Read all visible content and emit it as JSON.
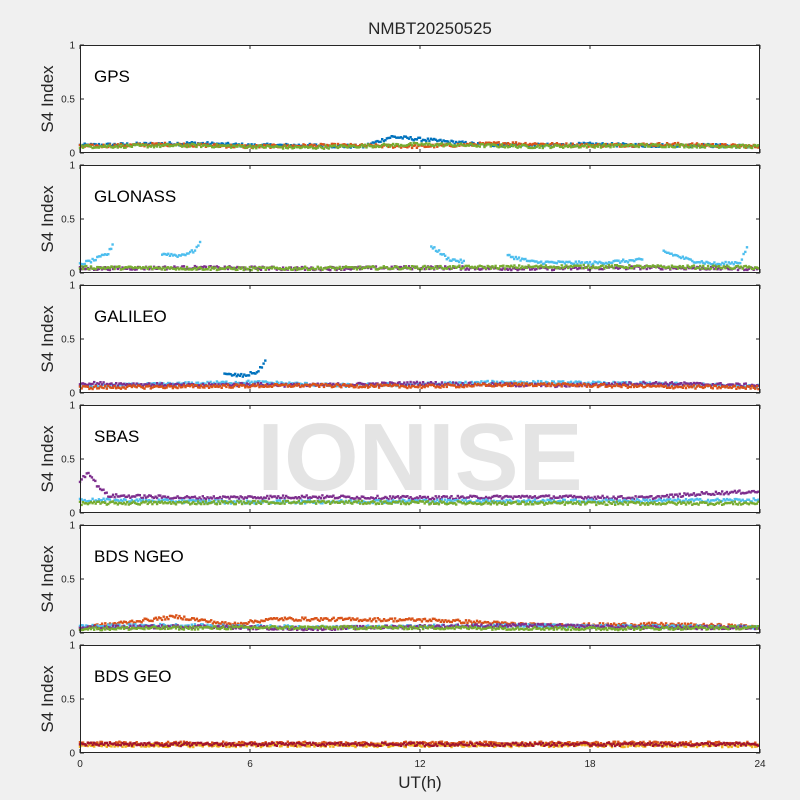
{
  "chart_data": {
    "type": "scatter",
    "title": "NMBT20250525",
    "xlabel": "UT(h)",
    "ylabel": "S4 Index",
    "xlim": [
      0,
      24
    ],
    "ylim": [
      0,
      1
    ],
    "xticks": [
      "0",
      "6",
      "12",
      "18",
      "24"
    ],
    "yticks": [
      "0",
      "0.5",
      "1"
    ],
    "watermark": "IONISE",
    "palette": [
      "#0072bd",
      "#d95319",
      "#edb120",
      "#7e2f8e",
      "#77ac30",
      "#4dbeee",
      "#a2142f"
    ],
    "panels": [
      {
        "name": "GPS",
        "series": [
          {
            "color": "#0072bd",
            "x": [
              0,
              2,
              4,
              6,
              8,
              10,
              11,
              14,
              16,
              18,
              20,
              22,
              24
            ],
            "y": [
              0.07,
              0.08,
              0.09,
              0.07,
              0.07,
              0.06,
              0.15,
              0.08,
              0.07,
              0.08,
              0.07,
              0.07,
              0.06
            ]
          },
          {
            "color": "#d95319",
            "x": [
              0,
              3,
              6,
              9,
              12,
              15,
              18,
              21,
              24
            ],
            "y": [
              0.06,
              0.08,
              0.06,
              0.07,
              0.06,
              0.09,
              0.07,
              0.08,
              0.06
            ]
          },
          {
            "color": "#77ac30",
            "x": [
              0,
              4,
              8,
              12,
              16,
              20,
              24
            ],
            "y": [
              0.06,
              0.07,
              0.05,
              0.08,
              0.06,
              0.07,
              0.06
            ]
          }
        ]
      },
      {
        "name": "GLONASS",
        "series": [
          {
            "color": "#4dbeee",
            "x": [
              0,
              0.5,
              1.0,
              1.2
            ],
            "y": [
              0.08,
              0.12,
              0.18,
              0.29
            ]
          },
          {
            "color": "#4dbeee",
            "x": [
              2.9,
              3.5,
              4.0,
              4.3
            ],
            "y": [
              0.18,
              0.16,
              0.2,
              0.29
            ]
          },
          {
            "color": "#4dbeee",
            "x": [
              12.4,
              13.0,
              13.6
            ],
            "y": [
              0.25,
              0.13,
              0.1
            ]
          },
          {
            "color": "#4dbeee",
            "x": [
              15.1,
              16.0,
              18.0,
              19.9
            ],
            "y": [
              0.16,
              0.1,
              0.09,
              0.12
            ]
          },
          {
            "color": "#4dbeee",
            "x": [
              20.6,
              21.5,
              22.5,
              23.3,
              23.6
            ],
            "y": [
              0.2,
              0.12,
              0.08,
              0.1,
              0.27
            ]
          },
          {
            "color": "#7e2f8e",
            "x": [
              0,
              4,
              8,
              12,
              16,
              20,
              24
            ],
            "y": [
              0.04,
              0.05,
              0.04,
              0.05,
              0.04,
              0.05,
              0.04
            ]
          },
          {
            "color": "#77ac30",
            "x": [
              0,
              6,
              12,
              18,
              24
            ],
            "y": [
              0.05,
              0.04,
              0.05,
              0.06,
              0.05
            ]
          }
        ]
      },
      {
        "name": "GALILEO",
        "series": [
          {
            "color": "#0072bd",
            "x": [
              5.1,
              5.8,
              6.3,
              6.6
            ],
            "y": [
              0.17,
              0.16,
              0.2,
              0.32
            ]
          },
          {
            "color": "#4dbeee",
            "x": [
              0,
              3,
              6,
              9,
              12,
              15,
              18,
              21,
              24
            ],
            "y": [
              0.06,
              0.08,
              0.1,
              0.07,
              0.08,
              0.1,
              0.09,
              0.08,
              0.06
            ]
          },
          {
            "color": "#7e2f8e",
            "x": [
              0,
              2,
              4,
              6,
              8,
              12,
              14,
              17,
              20,
              24
            ],
            "y": [
              0.09,
              0.08,
              0.07,
              0.08,
              0.07,
              0.09,
              0.08,
              0.07,
              0.09,
              0.07
            ]
          },
          {
            "color": "#d95319",
            "x": [
              0,
              4,
              8,
              12,
              16,
              20,
              24
            ],
            "y": [
              0.05,
              0.06,
              0.07,
              0.06,
              0.08,
              0.06,
              0.05
            ]
          }
        ]
      },
      {
        "name": "SBAS",
        "series": [
          {
            "color": "#7e2f8e",
            "x": [
              0,
              0.3,
              0.6,
              1.0,
              4,
              8,
              12,
              16,
              20,
              22,
              24
            ],
            "y": [
              0.3,
              0.38,
              0.26,
              0.16,
              0.14,
              0.15,
              0.14,
              0.15,
              0.14,
              0.18,
              0.2
            ]
          },
          {
            "color": "#4dbeee",
            "x": [
              0,
              6,
              12,
              18,
              24
            ],
            "y": [
              0.12,
              0.1,
              0.11,
              0.11,
              0.12
            ]
          },
          {
            "color": "#77ac30",
            "x": [
              0,
              8,
              16,
              24
            ],
            "y": [
              0.09,
              0.1,
              0.09,
              0.09
            ]
          }
        ]
      },
      {
        "name": "BDS NGEO",
        "series": [
          {
            "color": "#d95319",
            "x": [
              0,
              3.4,
              5.3,
              6.9,
              12.4,
              16.4,
              20.3,
              24
            ],
            "y": [
              0.05,
              0.15,
              0.08,
              0.13,
              0.12,
              0.07,
              0.08,
              0.06
            ]
          },
          {
            "color": "#4dbeee",
            "x": [
              0,
              3,
              6,
              9,
              12,
              15,
              18,
              21,
              24
            ],
            "y": [
              0.06,
              0.07,
              0.06,
              0.05,
              0.06,
              0.07,
              0.06,
              0.06,
              0.05
            ]
          },
          {
            "color": "#7e2f8e",
            "x": [
              0,
              4,
              8,
              12,
              16,
              20,
              24
            ],
            "y": [
              0.05,
              0.06,
              0.04,
              0.06,
              0.07,
              0.05,
              0.05
            ]
          },
          {
            "color": "#77ac30",
            "x": [
              0,
              6,
              12,
              18,
              24
            ],
            "y": [
              0.04,
              0.05,
              0.05,
              0.04,
              0.05
            ]
          }
        ]
      },
      {
        "name": "BDS GEO",
        "series": [
          {
            "color": "#d95319",
            "x": [
              0,
              4,
              8,
              12,
              16,
              20,
              24
            ],
            "y": [
              0.09,
              0.09,
              0.09,
              0.09,
              0.09,
              0.09,
              0.09
            ]
          },
          {
            "color": "#edb120",
            "x": [
              0,
              6,
              12,
              18,
              24
            ],
            "y": [
              0.07,
              0.07,
              0.07,
              0.07,
              0.07
            ]
          },
          {
            "color": "#a2142f",
            "x": [
              0,
              8,
              16,
              24
            ],
            "y": [
              0.08,
              0.08,
              0.08,
              0.08
            ]
          }
        ]
      }
    ]
  }
}
